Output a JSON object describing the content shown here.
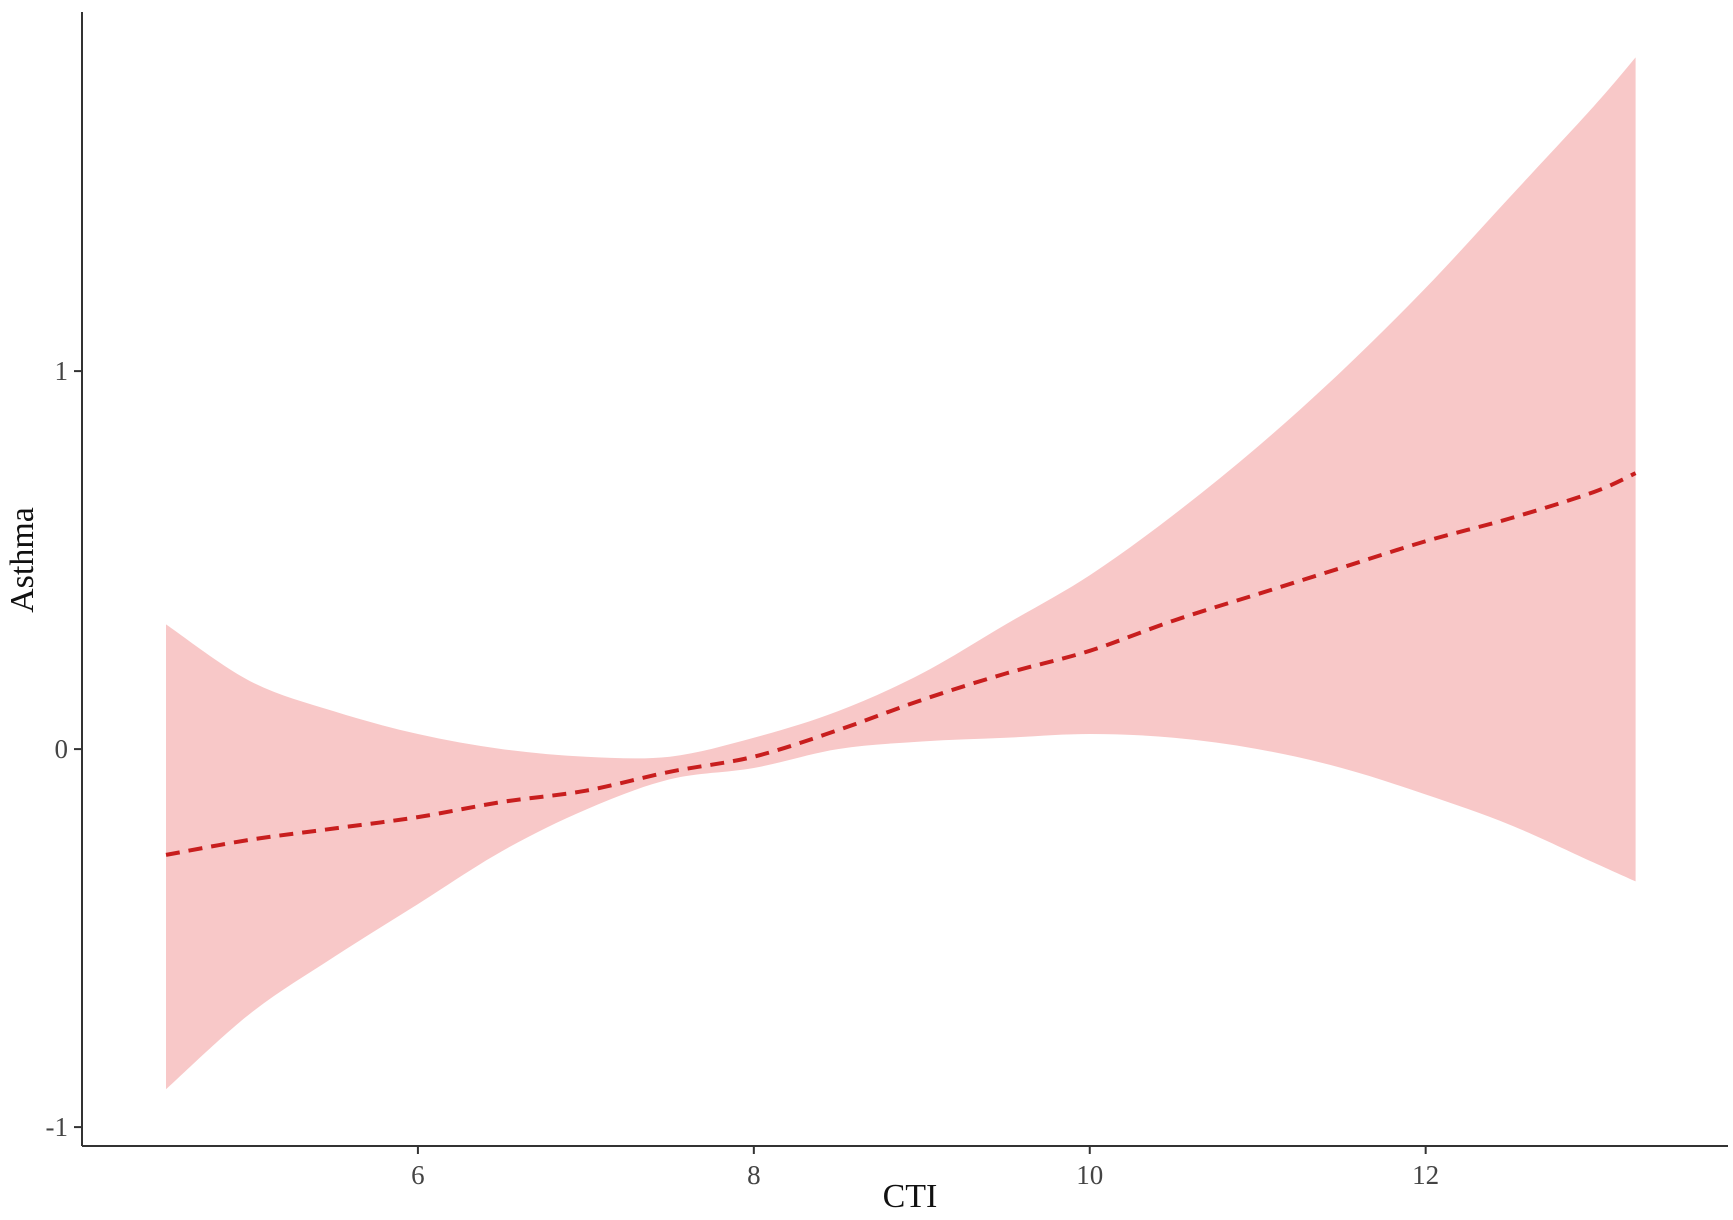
{
  "chart_data": {
    "type": "line",
    "title": "",
    "xlabel": "CTI",
    "ylabel": "Asthma",
    "xlim": [
      4.0,
      13.8
    ],
    "ylim": [
      -1.05,
      1.95
    ],
    "x_ticks": [
      6,
      8,
      10,
      12
    ],
    "y_ticks": [
      -1,
      0,
      1
    ],
    "x_tick_labels": [
      "6",
      "8",
      "10",
      "12"
    ],
    "y_tick_labels": [
      "-1",
      "0",
      "1"
    ],
    "grid": false,
    "legend": "none",
    "series": [
      {
        "x": [
          4.5,
          5.0,
          5.5,
          6.0,
          6.5,
          7.0,
          7.5,
          8.0,
          8.5,
          9.0,
          9.5,
          10.0,
          10.5,
          11.0,
          11.5,
          12.0,
          12.5,
          13.0,
          13.25
        ],
        "y": [
          -0.28,
          -0.24,
          -0.21,
          -0.18,
          -0.14,
          -0.11,
          -0.06,
          -0.02,
          0.05,
          0.13,
          0.2,
          0.26,
          0.34,
          0.41,
          0.48,
          0.55,
          0.61,
          0.68,
          0.73
        ],
        "lower": [
          -0.9,
          -0.7,
          -0.55,
          -0.41,
          -0.27,
          -0.16,
          -0.08,
          -0.05,
          0.0,
          0.02,
          0.03,
          0.04,
          0.03,
          0.0,
          -0.05,
          -0.12,
          -0.2,
          -0.3,
          -0.35
        ],
        "upper": [
          0.33,
          0.18,
          0.1,
          0.04,
          0.0,
          -0.02,
          -0.02,
          0.03,
          0.1,
          0.2,
          0.33,
          0.46,
          0.62,
          0.8,
          1.0,
          1.22,
          1.46,
          1.7,
          1.83
        ]
      }
    ],
    "colors": {
      "line": "#c81e1e",
      "band": "#f8c8c8",
      "axis": "#333333"
    }
  }
}
